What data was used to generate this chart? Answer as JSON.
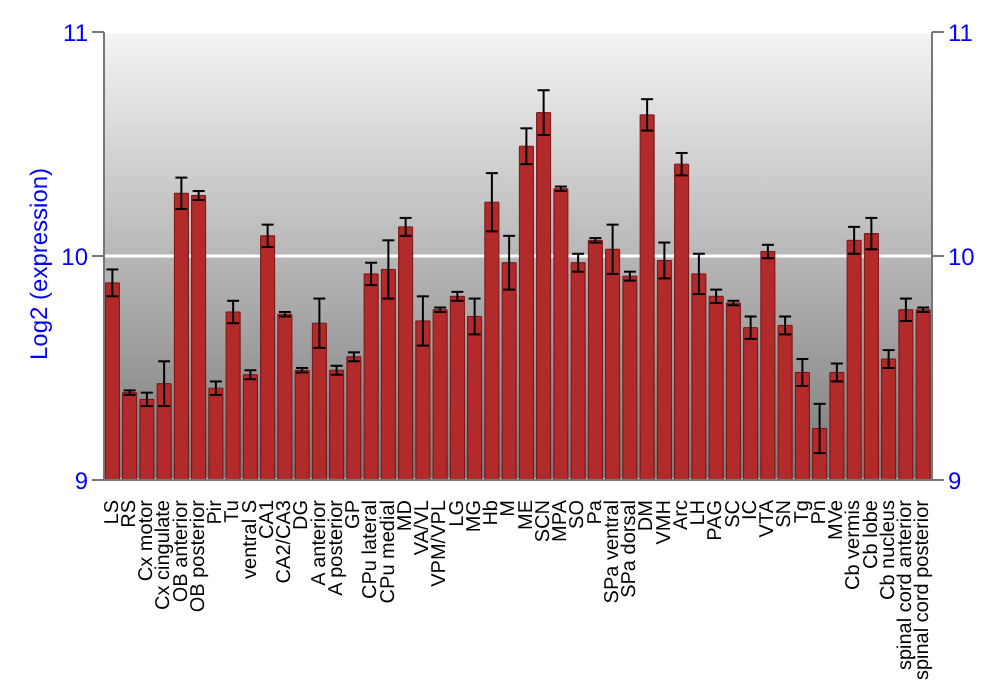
{
  "chart_data": {
    "type": "bar",
    "ylabel": "Log2 (expression)",
    "categories": [
      "LS",
      "RS",
      "Cx motor",
      "Cx cingulate",
      "OB anterior",
      "OB posterior",
      "Pir",
      "Tu",
      "ventral S",
      "CA1",
      "CA2/CA3",
      "DG",
      "A anterior",
      "A posterior",
      "GP",
      "CPu lateral",
      "CPu medial",
      "MD",
      "VA/VL",
      "VPM/VPL",
      "LG",
      "MG",
      "Hb",
      "M",
      "ME",
      "SCN",
      "MPA",
      "SO",
      "Pa",
      "SPa ventral",
      "SPa dorsal",
      "DM",
      "VMH",
      "Arc",
      "LH",
      "PAG",
      "SC",
      "IC",
      "VTA",
      "SN",
      "Tg",
      "Pn",
      "MVe",
      "Cb vermis",
      "Cb lobe",
      "Cb nucleus",
      "spinal cord anterior",
      "spinal cord posterior"
    ],
    "values": [
      9.88,
      9.39,
      9.36,
      9.43,
      10.28,
      10.27,
      9.41,
      9.75,
      9.47,
      10.09,
      9.74,
      9.49,
      9.7,
      9.49,
      9.55,
      9.92,
      9.94,
      10.13,
      9.71,
      9.76,
      9.82,
      9.73,
      10.24,
      9.97,
      10.49,
      10.64,
      10.3,
      9.97,
      10.07,
      10.03,
      9.91,
      10.63,
      9.98,
      10.41,
      9.92,
      9.82,
      9.79,
      9.68,
      10.02,
      9.69,
      9.48,
      9.23,
      9.48,
      10.07,
      10.1,
      9.54,
      9.76,
      9.76
    ],
    "errors": [
      0.06,
      0.01,
      0.03,
      0.1,
      0.07,
      0.02,
      0.03,
      0.05,
      0.02,
      0.05,
      0.01,
      0.01,
      0.11,
      0.02,
      0.02,
      0.05,
      0.13,
      0.04,
      0.11,
      0.01,
      0.02,
      0.08,
      0.13,
      0.12,
      0.08,
      0.1,
      0.01,
      0.04,
      0.01,
      0.11,
      0.02,
      0.07,
      0.08,
      0.05,
      0.09,
      0.03,
      0.01,
      0.05,
      0.03,
      0.04,
      0.06,
      0.11,
      0.04,
      0.06,
      0.07,
      0.04,
      0.05,
      0.01
    ],
    "color": "#b22a2a",
    "ylim": [
      9,
      11
    ],
    "yticks": [
      9,
      10,
      11
    ],
    "y2lim": [
      9,
      11
    ],
    "y2ticks": [
      9,
      10,
      11
    ],
    "grid": "y"
  }
}
